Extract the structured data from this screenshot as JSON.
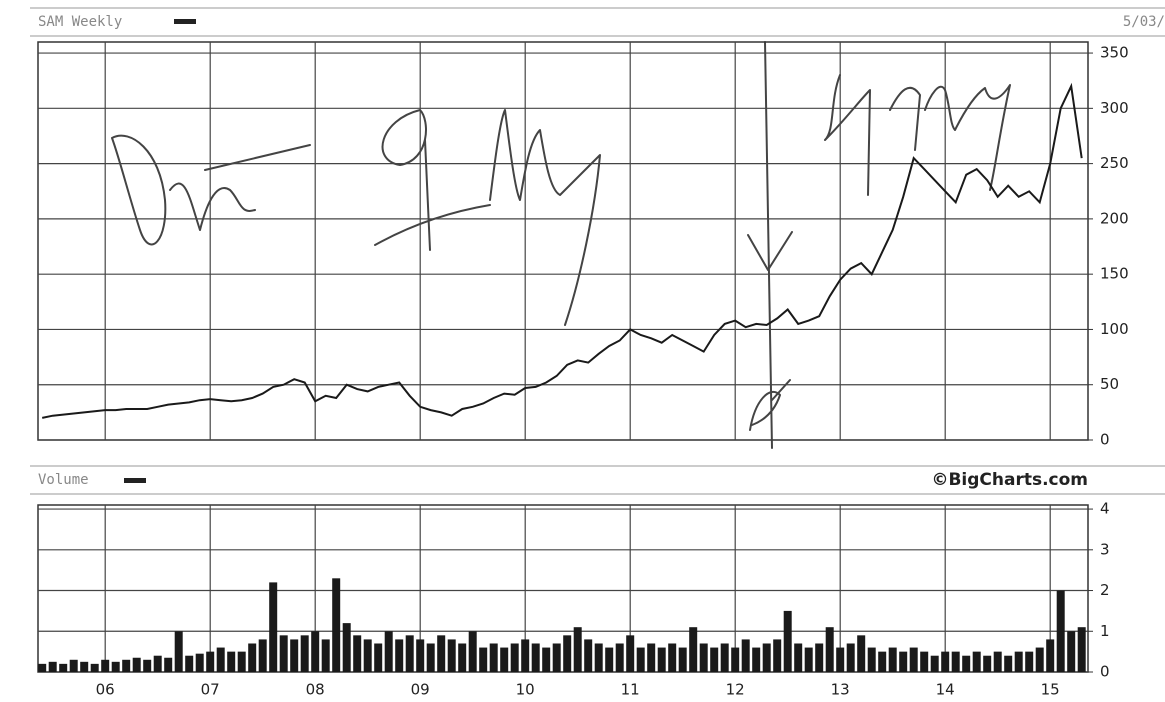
{
  "chart_data": [
    {
      "type": "line",
      "title": "SAM Weekly",
      "date": "5/03/",
      "color": "#1a1a1a",
      "grid": true,
      "xlim": [
        2005.36,
        2015.36
      ],
      "xticks": [
        2006,
        2007,
        2008,
        2009,
        2010,
        2011,
        2012,
        2013,
        2014,
        2015
      ],
      "ylim": [
        0,
        360
      ],
      "yticks": [
        0,
        50,
        100,
        150,
        200,
        250,
        300,
        350
      ],
      "x": [
        2005.4,
        2005.5,
        2005.6,
        2005.7,
        2005.8,
        2005.9,
        2006.0,
        2006.1,
        2006.2,
        2006.3,
        2006.4,
        2006.5,
        2006.6,
        2006.7,
        2006.8,
        2006.9,
        2007.0,
        2007.1,
        2007.2,
        2007.3,
        2007.4,
        2007.5,
        2007.6,
        2007.7,
        2007.8,
        2007.9,
        2008.0,
        2008.1,
        2008.2,
        2008.3,
        2008.4,
        2008.5,
        2008.6,
        2008.7,
        2008.8,
        2008.9,
        2009.0,
        2009.1,
        2009.2,
        2009.3,
        2009.4,
        2009.5,
        2009.6,
        2009.7,
        2009.8,
        2009.9,
        2010.0,
        2010.1,
        2010.2,
        2010.3,
        2010.4,
        2010.5,
        2010.6,
        2010.7,
        2010.8,
        2010.9,
        2011.0,
        2011.1,
        2011.2,
        2011.3,
        2011.4,
        2011.5,
        2011.6,
        2011.7,
        2011.8,
        2011.9,
        2012.0,
        2012.1,
        2012.2,
        2012.3,
        2012.4,
        2012.5,
        2012.6,
        2012.7,
        2012.8,
        2012.9,
        2013.0,
        2013.1,
        2013.2,
        2013.3,
        2013.4,
        2013.5,
        2013.6,
        2013.7,
        2013.8,
        2013.9,
        2014.0,
        2014.1,
        2014.2,
        2014.3,
        2014.4,
        2014.5,
        2014.6,
        2014.7,
        2014.8,
        2014.9,
        2015.0,
        2015.1,
        2015.2,
        2015.3
      ],
      "values": [
        20,
        22,
        23,
        24,
        25,
        26,
        27,
        27,
        28,
        28,
        28,
        30,
        32,
        33,
        34,
        36,
        37,
        36,
        35,
        36,
        38,
        42,
        48,
        50,
        55,
        52,
        35,
        40,
        38,
        50,
        46,
        44,
        48,
        50,
        52,
        40,
        30,
        27,
        25,
        22,
        28,
        30,
        33,
        38,
        42,
        41,
        47,
        48,
        52,
        58,
        68,
        72,
        70,
        78,
        85,
        90,
        100,
        95,
        92,
        88,
        95,
        90,
        85,
        80,
        95,
        105,
        108,
        102,
        105,
        104,
        110,
        118,
        105,
        108,
        112,
        130,
        145,
        155,
        160,
        150,
        170,
        190,
        220,
        255,
        245,
        235,
        225,
        215,
        240,
        245,
        235,
        220,
        230,
        220,
        225,
        215,
        250,
        300,
        320,
        255
      ]
    },
    {
      "type": "bar",
      "title": "Volume",
      "source": "©BigCharts.com",
      "color": "#1a1a1a",
      "grid": true,
      "xlim": [
        2005.36,
        2015.36
      ],
      "xticks": [
        {
          "value": 2006,
          "label": "06"
        },
        {
          "value": 2007,
          "label": "07"
        },
        {
          "value": 2008,
          "label": "08"
        },
        {
          "value": 2009,
          "label": "09"
        },
        {
          "value": 2010,
          "label": "10"
        },
        {
          "value": 2011,
          "label": "11"
        },
        {
          "value": 2012,
          "label": "12"
        },
        {
          "value": 2013,
          "label": "13"
        },
        {
          "value": 2014,
          "label": "14"
        },
        {
          "value": 2015,
          "label": "15"
        }
      ],
      "ylim": [
        0,
        4.1
      ],
      "yticks": [
        0,
        1,
        2,
        3,
        4
      ],
      "x": [
        2005.4,
        2005.5,
        2005.6,
        2005.7,
        2005.8,
        2005.9,
        2006.0,
        2006.1,
        2006.2,
        2006.3,
        2006.4,
        2006.5,
        2006.6,
        2006.7,
        2006.8,
        2006.9,
        2007.0,
        2007.1,
        2007.2,
        2007.3,
        2007.4,
        2007.5,
        2007.6,
        2007.7,
        2007.8,
        2007.9,
        2008.0,
        2008.1,
        2008.2,
        2008.3,
        2008.4,
        2008.5,
        2008.6,
        2008.7,
        2008.8,
        2008.9,
        2009.0,
        2009.1,
        2009.2,
        2009.3,
        2009.4,
        2009.5,
        2009.6,
        2009.7,
        2009.8,
        2009.9,
        2010.0,
        2010.1,
        2010.2,
        2010.3,
        2010.4,
        2010.5,
        2010.6,
        2010.7,
        2010.8,
        2010.9,
        2011.0,
        2011.1,
        2011.2,
        2011.3,
        2011.4,
        2011.5,
        2011.6,
        2011.7,
        2011.8,
        2011.9,
        2012.0,
        2012.1,
        2012.2,
        2012.3,
        2012.4,
        2012.5,
        2012.6,
        2012.7,
        2012.8,
        2012.9,
        2013.0,
        2013.1,
        2013.2,
        2013.3,
        2013.4,
        2013.5,
        2013.6,
        2013.7,
        2013.8,
        2013.9,
        2014.0,
        2014.1,
        2014.2,
        2014.3,
        2014.4,
        2014.5,
        2014.6,
        2014.7,
        2014.8,
        2014.9,
        2015.0,
        2015.1,
        2015.2,
        2015.3
      ],
      "values": [
        0.2,
        0.25,
        0.2,
        0.3,
        0.25,
        0.2,
        0.3,
        0.25,
        0.3,
        0.35,
        0.3,
        0.4,
        0.35,
        1.0,
        0.4,
        0.45,
        0.5,
        0.6,
        0.5,
        0.5,
        0.7,
        0.8,
        2.2,
        0.9,
        0.8,
        0.9,
        1.0,
        0.8,
        2.3,
        1.2,
        0.9,
        0.8,
        0.7,
        1.0,
        0.8,
        0.9,
        0.8,
        0.7,
        0.9,
        0.8,
        0.7,
        1.0,
        0.6,
        0.7,
        0.6,
        0.7,
        0.8,
        0.7,
        0.6,
        0.7,
        0.9,
        1.1,
        0.8,
        0.7,
        0.6,
        0.7,
        0.9,
        0.6,
        0.7,
        0.6,
        0.7,
        0.6,
        1.1,
        0.7,
        0.6,
        0.7,
        0.6,
        0.8,
        0.6,
        0.7,
        0.8,
        1.5,
        0.7,
        0.6,
        0.7,
        1.1,
        0.6,
        0.7,
        0.9,
        0.6,
        0.5,
        0.6,
        0.5,
        0.6,
        0.5,
        0.4,
        0.5,
        0.5,
        0.4,
        0.5,
        0.4,
        0.5,
        0.4,
        0.5,
        0.5,
        0.6,
        0.8,
        2.0,
        1.0,
        1.1
      ]
    }
  ]
}
